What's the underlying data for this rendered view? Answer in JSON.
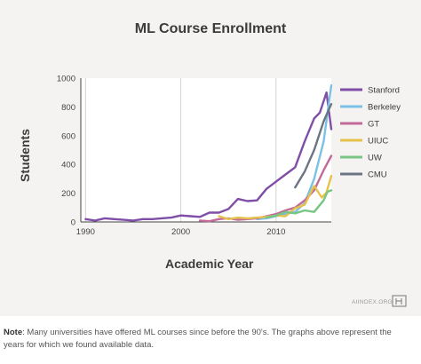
{
  "footer": {
    "brand": "AIINDEX.ORG",
    "note_label": "Note",
    "note_text": ": Many universities have offered ML courses since before the 90's. The graphs above represent the years for which we found available data."
  },
  "chart_data": {
    "type": "line",
    "title": "ML Course Enrollment",
    "xlabel": "Academic Year",
    "ylabel": "Students",
    "xlim": [
      1989.5,
      2015.8
    ],
    "ylim": [
      0,
      1000
    ],
    "x_ticks": [
      1990,
      2000,
      2010
    ],
    "y_ticks": [
      0,
      200,
      400,
      600,
      800,
      1000
    ],
    "grid": "vertical at x ticks",
    "legend_position": "right",
    "series": [
      {
        "name": "Stanford",
        "color": "#7f4fa8",
        "points": [
          [
            1990,
            20
          ],
          [
            1991,
            10
          ],
          [
            1992,
            25
          ],
          [
            1993,
            20
          ],
          [
            1994,
            15
          ],
          [
            1995,
            10
          ],
          [
            1996,
            20
          ],
          [
            1997,
            20
          ],
          [
            1998,
            25
          ],
          [
            1999,
            30
          ],
          [
            2000,
            45
          ],
          [
            2001,
            40
          ],
          [
            2002,
            35
          ],
          [
            2003,
            65
          ],
          [
            2004,
            65
          ],
          [
            2005,
            90
          ],
          [
            2006,
            160
          ],
          [
            2007,
            145
          ],
          [
            2008,
            150
          ],
          [
            2009,
            230
          ],
          [
            2010,
            280
          ],
          [
            2011,
            330
          ],
          [
            2012,
            380
          ],
          [
            2013,
            560
          ],
          [
            2014,
            720
          ],
          [
            2014.6,
            760
          ],
          [
            2015.3,
            900
          ],
          [
            2015.8,
            645
          ]
        ]
      },
      {
        "name": "Berkeley",
        "color": "#7bc1e6",
        "points": [
          [
            2008,
            20
          ],
          [
            2009,
            25
          ],
          [
            2010,
            40
          ],
          [
            2011,
            55
          ],
          [
            2012,
            70
          ],
          [
            2013,
            130
          ],
          [
            2014,
            300
          ],
          [
            2015,
            560
          ],
          [
            2015.8,
            950
          ]
        ]
      },
      {
        "name": "GT",
        "color": "#c26a9a",
        "points": [
          [
            2002,
            10
          ],
          [
            2003,
            5
          ],
          [
            2004,
            20
          ],
          [
            2005,
            25
          ],
          [
            2006,
            15
          ],
          [
            2007,
            20
          ],
          [
            2008,
            25
          ],
          [
            2009,
            40
          ],
          [
            2010,
            55
          ],
          [
            2011,
            80
          ],
          [
            2012,
            100
          ],
          [
            2013,
            150
          ],
          [
            2014,
            220
          ],
          [
            2015,
            360
          ],
          [
            2015.8,
            460
          ]
        ]
      },
      {
        "name": "UIUC",
        "color": "#e5c24b",
        "points": [
          [
            2004,
            40
          ],
          [
            2005,
            20
          ],
          [
            2006,
            30
          ],
          [
            2007,
            25
          ],
          [
            2008,
            30
          ],
          [
            2009,
            35
          ],
          [
            2010,
            45
          ],
          [
            2011,
            40
          ],
          [
            2012,
            95
          ],
          [
            2013,
            120
          ],
          [
            2014,
            250
          ],
          [
            2014.8,
            170
          ],
          [
            2015.3,
            205
          ],
          [
            2015.8,
            320
          ]
        ]
      },
      {
        "name": "UW",
        "color": "#78c584",
        "points": [
          [
            2009,
            30
          ],
          [
            2010,
            45
          ],
          [
            2011,
            70
          ],
          [
            2012,
            60
          ],
          [
            2013,
            80
          ],
          [
            2014,
            70
          ],
          [
            2015,
            150
          ],
          [
            2015.4,
            210
          ],
          [
            2015.8,
            220
          ]
        ]
      },
      {
        "name": "CMU",
        "color": "#6a7581",
        "points": [
          [
            2012,
            240
          ],
          [
            2013,
            350
          ],
          [
            2014,
            500
          ],
          [
            2015,
            700
          ],
          [
            2015.8,
            820
          ]
        ]
      }
    ]
  }
}
